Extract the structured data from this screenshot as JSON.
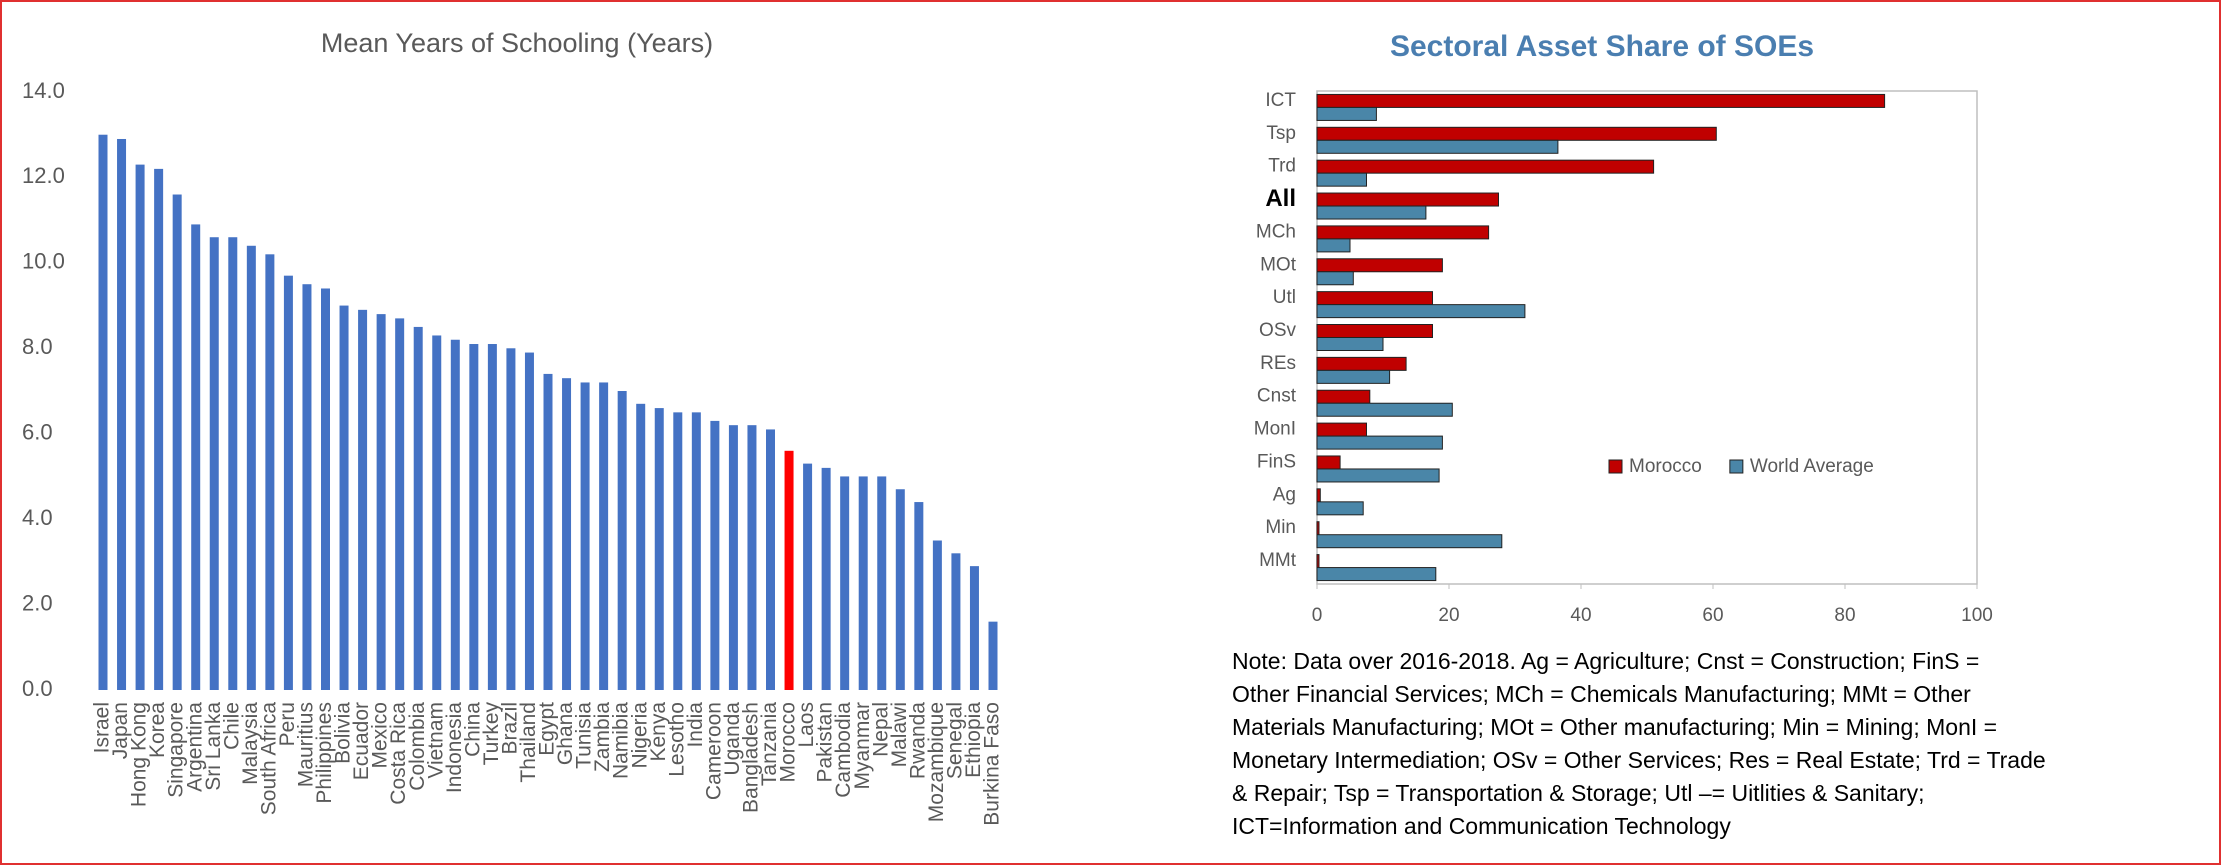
{
  "chart_data": [
    {
      "type": "bar",
      "title": "Mean Years of Schooling (Years)",
      "categories": [
        "Israel",
        "Japan",
        "Hong Kong",
        "Korea",
        "Singapore",
        "Argentina",
        "Sri Lanka",
        "Chile",
        "Malaysia",
        "South Africa",
        "Peru",
        "Mauritius",
        "Philippines",
        "Bolivia",
        "Ecuador",
        "Mexico",
        "Costa Rica",
        "Colombia",
        "Vietnam",
        "Indonesia",
        "China",
        "Turkey",
        "Brazil",
        "Thailand",
        "Egypt",
        "Ghana",
        "Tunisia",
        "Zambia",
        "Namibia",
        "Nigeria",
        "Kenya",
        "Lesotho",
        "India",
        "Cameroon",
        "Uganda",
        "Bangladesh",
        "Tanzania",
        "Morocco",
        "Laos",
        "Pakistan",
        "Cambodia",
        "Myanmar",
        "Nepal",
        "Malawi",
        "Rwanda",
        "Mozambique",
        "Senegal",
        "Ethiopia",
        "Burkina Faso"
      ],
      "values": [
        13.0,
        12.9,
        12.3,
        12.2,
        11.6,
        10.9,
        10.6,
        10.6,
        10.4,
        10.2,
        9.7,
        9.5,
        9.4,
        9.0,
        8.9,
        8.8,
        8.7,
        8.5,
        8.3,
        8.2,
        8.1,
        8.1,
        8.0,
        7.9,
        7.4,
        7.3,
        7.2,
        7.2,
        7.0,
        6.7,
        6.6,
        6.5,
        6.5,
        6.3,
        6.2,
        6.2,
        6.1,
        5.6,
        5.3,
        5.2,
        5.0,
        5.0,
        5.0,
        4.7,
        4.4,
        3.5,
        3.2,
        2.9,
        1.6
      ],
      "colors": [
        "#4472c4",
        "#4472c4",
        "#4472c4",
        "#4472c4",
        "#4472c4",
        "#4472c4",
        "#4472c4",
        "#4472c4",
        "#4472c4",
        "#4472c4",
        "#4472c4",
        "#4472c4",
        "#4472c4",
        "#4472c4",
        "#4472c4",
        "#4472c4",
        "#4472c4",
        "#4472c4",
        "#4472c4",
        "#4472c4",
        "#4472c4",
        "#4472c4",
        "#4472c4",
        "#4472c4",
        "#4472c4",
        "#4472c4",
        "#4472c4",
        "#4472c4",
        "#4472c4",
        "#4472c4",
        "#4472c4",
        "#4472c4",
        "#4472c4",
        "#4472c4",
        "#4472c4",
        "#4472c4",
        "#4472c4",
        "#ff0000",
        "#4472c4",
        "#4472c4",
        "#4472c4",
        "#4472c4",
        "#4472c4",
        "#4472c4",
        "#4472c4",
        "#4472c4",
        "#4472c4",
        "#4472c4",
        "#4472c4"
      ],
      "ylim": [
        0,
        14
      ],
      "yticks": [
        {
          "value": 0,
          "label": "0.0"
        },
        {
          "value": 2,
          "label": "2.0"
        },
        {
          "value": 4,
          "label": "4.0"
        },
        {
          "value": 6,
          "label": "6.0"
        },
        {
          "value": 8,
          "label": "8.0"
        },
        {
          "value": 10,
          "label": "10.0"
        },
        {
          "value": 12,
          "label": "12.0"
        },
        {
          "value": 14,
          "label": "14.0"
        }
      ],
      "grid": false
    },
    {
      "type": "hbar",
      "title": "Sectoral Asset Share of SOEs",
      "categories": [
        "ICT",
        "Tsp",
        "Trd",
        "All",
        "MCh",
        "MOt",
        "Utl",
        "OSv",
        "REs",
        "Cnst",
        "MonI",
        "FinS",
        "Ag",
        "Min",
        "MMt"
      ],
      "bold_category": "All",
      "series": [
        {
          "name": "Morocco",
          "color": "#c00000",
          "values": [
            86,
            60.5,
            51,
            27.5,
            26,
            19,
            17.5,
            17.5,
            13.5,
            8,
            7.5,
            3.5,
            0.5,
            0.3,
            0.3
          ]
        },
        {
          "name": "World Average",
          "color": "#4a86a8",
          "values": [
            9,
            36.5,
            7.5,
            16.5,
            5,
            5.5,
            31.5,
            10,
            11,
            20.5,
            19,
            18.5,
            7,
            28,
            18
          ]
        }
      ],
      "xlim": [
        0,
        100
      ],
      "xticks": [
        0,
        20,
        40,
        60,
        80,
        100
      ],
      "legend": "lower right",
      "note": [
        "Note: Data over 2016-2018.   Ag = Agriculture; Cnst = Construction; FinS =",
        "Other Financial Services; MCh = Chemicals Manufacturing; MMt  = Other",
        "Materials Manufacturing; MOt = Other manufacturing; Min = Mining; MonI =",
        "Monetary Intermediation; OSv = Other Services; Res = Real Estate; Trd = Trade",
        "& Repair; Tsp = Transportation & Storage; Utl –= Uitlities & Sanitary;",
        "ICT=Information and Communication Technology"
      ]
    }
  ]
}
